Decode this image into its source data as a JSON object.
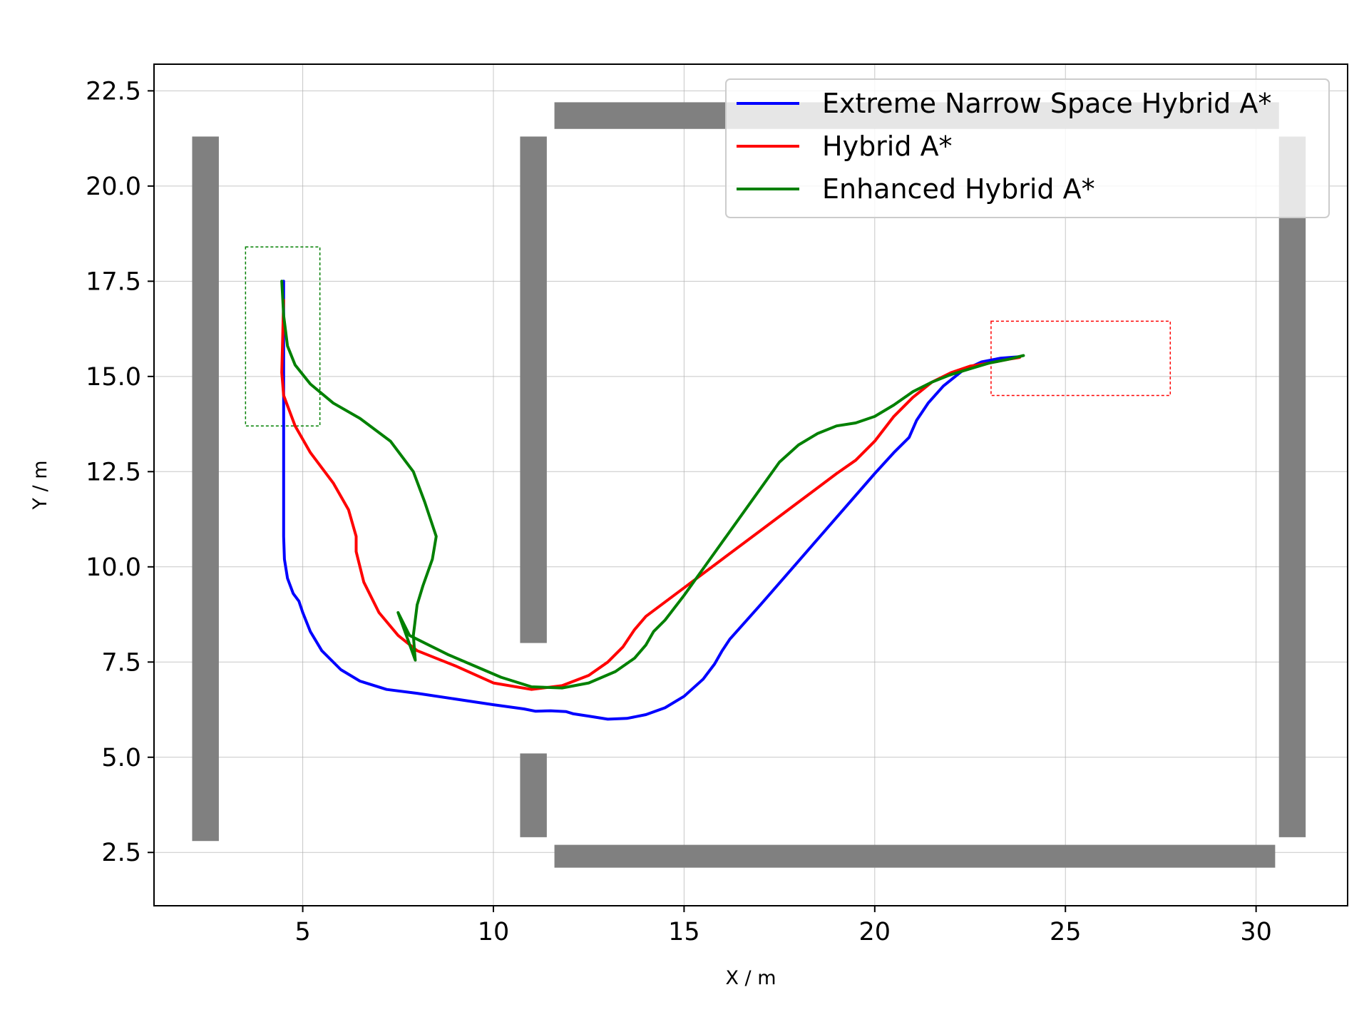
{
  "chart_data": {
    "type": "line",
    "title": "",
    "xlabel": "X / m",
    "ylabel": "Y / m",
    "xlim": [
      1.1,
      32.4
    ],
    "ylim": [
      1.1,
      23.2
    ],
    "xticks": [
      5,
      10,
      15,
      20,
      25,
      30
    ],
    "yticks": [
      2.5,
      5.0,
      7.5,
      10.0,
      12.5,
      15.0,
      17.5,
      20.0,
      22.5
    ],
    "xtick_labels": [
      "5",
      "10",
      "15",
      "20",
      "25",
      "30"
    ],
    "ytick_labels": [
      "2.5",
      "5.0",
      "7.5",
      "10.0",
      "12.5",
      "15.0",
      "17.5",
      "20.0",
      "22.5"
    ],
    "grid": true,
    "legend_position": "upper-right",
    "obstacles": [
      {
        "x": [
          2.1,
          2.8
        ],
        "y": [
          2.8,
          21.3
        ]
      },
      {
        "x": [
          10.7,
          11.4
        ],
        "y": [
          8.0,
          21.3
        ]
      },
      {
        "x": [
          10.7,
          11.4
        ],
        "y": [
          2.9,
          5.1
        ]
      },
      {
        "x": [
          11.6,
          30.6
        ],
        "y": [
          21.5,
          22.2
        ]
      },
      {
        "x": [
          11.6,
          30.5
        ],
        "y": [
          2.1,
          2.7
        ]
      },
      {
        "x": [
          30.6,
          31.3
        ],
        "y": [
          2.9,
          21.3
        ]
      }
    ],
    "obstacle_color": "#808080",
    "regions": [
      {
        "name": "start",
        "x": [
          3.5,
          5.45
        ],
        "y": [
          13.7,
          18.4
        ],
        "color": "#008000"
      },
      {
        "name": "goal",
        "x": [
          23.05,
          27.75
        ],
        "y": [
          14.5,
          16.45
        ],
        "color": "#ff0000"
      }
    ],
    "series": [
      {
        "name": "Extreme Narrow Space Hybrid A*",
        "color": "#0000ff",
        "x": [
          4.5,
          4.5,
          4.5,
          4.5,
          4.52,
          4.6,
          4.75,
          4.9,
          5.0,
          5.2,
          5.5,
          6.0,
          6.5,
          7.2,
          8.0,
          9.0,
          10.0,
          10.8,
          11.1,
          11.5,
          11.9,
          12.1,
          12.5,
          13.0,
          13.5,
          14.0,
          14.5,
          15.0,
          15.5,
          15.8,
          16.0,
          16.2,
          17.0,
          18.0,
          19.0,
          20.0,
          20.5,
          20.9,
          21.1,
          21.4,
          21.8,
          22.3,
          22.8,
          23.3,
          23.8
        ],
        "y": [
          17.5,
          15.5,
          13.5,
          10.8,
          10.2,
          9.7,
          9.3,
          9.1,
          8.8,
          8.3,
          7.8,
          7.3,
          7.0,
          6.78,
          6.68,
          6.53,
          6.38,
          6.27,
          6.21,
          6.22,
          6.2,
          6.14,
          6.08,
          6.0,
          6.02,
          6.12,
          6.3,
          6.6,
          7.05,
          7.45,
          7.8,
          8.1,
          9.0,
          10.15,
          11.3,
          12.45,
          13.0,
          13.4,
          13.85,
          14.3,
          14.75,
          15.15,
          15.38,
          15.48,
          15.52
        ]
      },
      {
        "name": "Hybrid A*",
        "color": "#ff0000",
        "x": [
          4.5,
          4.45,
          4.5,
          4.8,
          5.2,
          5.8,
          6.2,
          6.4,
          6.4,
          6.6,
          7.0,
          7.5,
          8.0,
          9.0,
          10.0,
          11.0,
          11.8,
          12.5,
          13.0,
          13.4,
          13.7,
          14.0,
          15.0,
          16.0,
          17.0,
          18.0,
          19.0,
          19.5,
          20.0,
          20.5,
          21.0,
          21.5,
          22.0,
          22.5,
          23.0,
          23.5,
          23.8
        ],
        "y": [
          17.0,
          15.1,
          14.5,
          13.7,
          13.0,
          12.2,
          11.5,
          10.8,
          10.4,
          9.6,
          8.8,
          8.2,
          7.8,
          7.4,
          6.95,
          6.78,
          6.88,
          7.15,
          7.5,
          7.9,
          8.35,
          8.7,
          9.45,
          10.2,
          10.95,
          11.7,
          12.45,
          12.8,
          13.3,
          13.95,
          14.45,
          14.85,
          15.1,
          15.27,
          15.35,
          15.45,
          15.5
        ]
      },
      {
        "name": "Enhanced Hybrid A*",
        "color": "#008000",
        "x": [
          4.45,
          4.5,
          4.6,
          4.8,
          5.2,
          5.8,
          6.5,
          7.3,
          7.9,
          8.2,
          8.5,
          8.4,
          8.15,
          8.0,
          7.9,
          7.95,
          7.5,
          7.8,
          8.3,
          8.8,
          9.5,
          10.2,
          11.0,
          11.8,
          12.5,
          13.2,
          13.7,
          14.0,
          14.2,
          14.5,
          15.0,
          15.5,
          16.0,
          17.0,
          17.5,
          18.0,
          18.5,
          19.0,
          19.5,
          20.0,
          20.5,
          21.0,
          21.5,
          22.0,
          22.5,
          23.0,
          23.5,
          23.9
        ],
        "y": [
          17.5,
          16.6,
          15.8,
          15.3,
          14.8,
          14.3,
          13.9,
          13.3,
          12.5,
          11.7,
          10.8,
          10.2,
          9.5,
          9.0,
          8.2,
          7.55,
          8.8,
          8.2,
          7.95,
          7.7,
          7.4,
          7.1,
          6.85,
          6.82,
          6.95,
          7.25,
          7.6,
          7.95,
          8.3,
          8.6,
          9.25,
          9.95,
          10.65,
          12.05,
          12.75,
          13.2,
          13.5,
          13.7,
          13.78,
          13.95,
          14.25,
          14.6,
          14.85,
          15.05,
          15.2,
          15.35,
          15.45,
          15.55
        ]
      }
    ]
  }
}
